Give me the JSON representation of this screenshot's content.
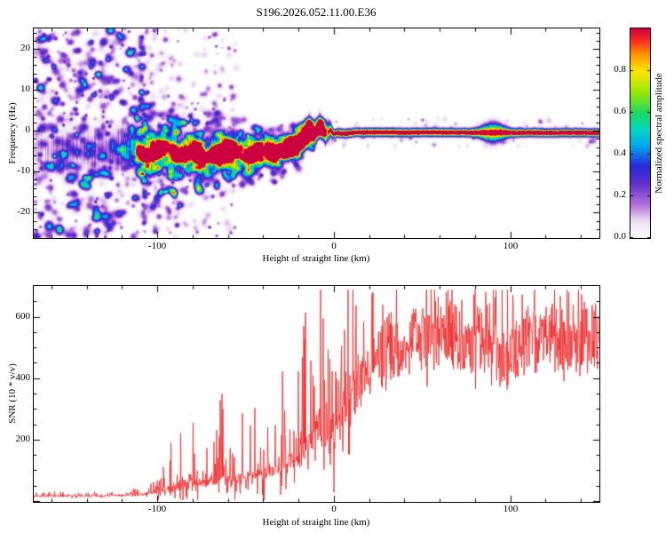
{
  "title": "S196.2026.052.11.00.E36",
  "axes": {
    "top": {
      "ylabel": "Frequency (Hz)",
      "xlabel": "Height of straight line (km)",
      "yticks": [
        "20",
        "10",
        "0",
        "-10",
        "-20"
      ],
      "xticks": [
        "-100",
        "0",
        "100"
      ]
    },
    "colorbar": {
      "label": "Normalized spectral amplitude",
      "ticks": [
        "0.8",
        "0.6",
        "0.4",
        "0.2",
        "0.0"
      ]
    },
    "bottom": {
      "ylabel": "SNR (10 * v/v)",
      "xlabel": "Height of straight line (km)",
      "yticks": [
        "600",
        "400",
        "200"
      ],
      "xticks": [
        "-100",
        "0",
        "100"
      ]
    }
  },
  "chart_data": [
    {
      "type": "heatmap",
      "title": "S196.2026.052.11.00.E36",
      "xlabel": "Height of straight line (km)",
      "ylabel": "Frequency (Hz)",
      "xrange": [
        -170,
        150
      ],
      "yrange": [
        -26,
        25
      ],
      "xticks": [
        -100,
        0,
        100
      ],
      "yticks": [
        -20,
        -10,
        0,
        10,
        20
      ],
      "colorbar_label": "Normalized spectral amplitude",
      "colorbar_range": [
        0,
        1
      ],
      "colorbar_ticks": [
        0.0,
        0.2,
        0.4,
        0.6,
        0.8
      ],
      "colormap": [
        [
          0.0,
          "#ffffff"
        ],
        [
          0.08,
          "#ecdcf4"
        ],
        [
          0.16,
          "#b06cd8"
        ],
        [
          0.26,
          "#6030cc"
        ],
        [
          0.34,
          "#2828d8"
        ],
        [
          0.44,
          "#00a8f0"
        ],
        [
          0.52,
          "#00d8c0"
        ],
        [
          0.6,
          "#20d860"
        ],
        [
          0.7,
          "#a0e800"
        ],
        [
          0.8,
          "#ffe400"
        ],
        [
          0.88,
          "#ff9000"
        ],
        [
          0.94,
          "#ff3020"
        ],
        [
          1.0,
          "#cc0040"
        ]
      ],
      "ridge": [
        [
          -170,
          -4.5
        ],
        [
          -130,
          -4.5
        ],
        [
          -115,
          -4.2
        ],
        [
          -105,
          -5.5
        ],
        [
          -96,
          -4.2
        ],
        [
          -88,
          -6.2
        ],
        [
          -80,
          -5.0
        ],
        [
          -73,
          -6.8
        ],
        [
          -66,
          -5.6
        ],
        [
          -58,
          -4.6
        ],
        [
          -51,
          -6.0
        ],
        [
          -45,
          -5.2
        ],
        [
          -38,
          -4.2
        ],
        [
          -32,
          -5.6
        ],
        [
          -26,
          -4.4
        ],
        [
          -21,
          -3.2
        ],
        [
          -17,
          -1.6
        ],
        [
          -14,
          0.6
        ],
        [
          -11,
          -1.8
        ],
        [
          -8,
          1.2
        ],
        [
          -5,
          -1.4
        ],
        [
          -2,
          0.4
        ],
        [
          0,
          -0.4
        ],
        [
          6,
          -0.6
        ],
        [
          12,
          -0.3
        ],
        [
          150,
          -0.4
        ]
      ],
      "ridge_amp": [
        [
          -170,
          0.1
        ],
        [
          -125,
          0.18
        ],
        [
          -112,
          0.3
        ],
        [
          -100,
          0.4
        ],
        [
          -88,
          0.46
        ],
        [
          -75,
          0.52
        ],
        [
          -60,
          0.5
        ],
        [
          -48,
          0.55
        ],
        [
          -38,
          0.6
        ],
        [
          -28,
          0.62
        ],
        [
          -20,
          0.7
        ],
        [
          -14,
          0.78
        ],
        [
          -9,
          0.68
        ],
        [
          -4,
          0.8
        ],
        [
          -1,
          0.9
        ],
        [
          1,
          0.96
        ],
        [
          40,
          0.96
        ],
        [
          86,
          0.92
        ],
        [
          91,
          0.88
        ],
        [
          96,
          0.95
        ],
        [
          150,
          0.95
        ]
      ],
      "ridge_width": [
        [
          -170,
          3.6
        ],
        [
          -110,
          3.0
        ],
        [
          -70,
          2.6
        ],
        [
          -40,
          2.2
        ],
        [
          -22,
          1.9
        ],
        [
          -12,
          1.7
        ],
        [
          -4,
          1.3
        ],
        [
          0,
          0.62
        ],
        [
          150,
          0.6
        ]
      ],
      "speckle": {
        "uniform": {
          "h_max": -108,
          "count": 520,
          "val": [
            0.08,
            0.4
          ],
          "r": [
            1.2,
            3.6
          ]
        },
        "taper": {
          "h0": -108,
          "h1": -55,
          "count": 260,
          "val": [
            0.07,
            0.28
          ],
          "r": [
            1.2,
            3.0
          ]
        },
        "band": {
          "h0": -112,
          "h1": -12,
          "count": 700,
          "val": [
            0.1,
            0.45
          ],
          "r": [
            1.2,
            3.4
          ],
          "sigma0": 13,
          "sigma1": 4
        },
        "ridge_blobs": {
          "h0": -112,
          "h1": -6,
          "count": 260,
          "val": [
            0.15,
            0.45
          ],
          "r": [
            1.5,
            4.0
          ]
        },
        "sparse_right": {
          "h0": -10,
          "h1": 150,
          "count": 90,
          "val": [
            0.05,
            0.18
          ],
          "r": [
            1.0,
            2.5
          ],
          "sigma": 3.5
        }
      }
    },
    {
      "type": "line",
      "xlabel": "Height of straight line (km)",
      "ylabel": "SNR (10 * v/v)",
      "xrange": [
        -170,
        150
      ],
      "yrange": [
        0,
        700
      ],
      "xticks": [
        -100,
        0,
        100
      ],
      "yticks": [
        0,
        200,
        400,
        600
      ],
      "color": "#ee2222",
      "envelope": [
        [
          -170,
          16,
          9
        ],
        [
          -150,
          16,
          9
        ],
        [
          -130,
          17,
          10
        ],
        [
          -118,
          18,
          12
        ],
        [
          -108,
          22,
          18
        ],
        [
          -100,
          30,
          35
        ],
        [
          -93,
          40,
          80
        ],
        [
          -86,
          55,
          150
        ],
        [
          -80,
          65,
          170
        ],
        [
          -74,
          60,
          130
        ],
        [
          -68,
          65,
          160
        ],
        [
          -62,
          75,
          195
        ],
        [
          -56,
          70,
          130
        ],
        [
          -50,
          78,
          130
        ],
        [
          -44,
          85,
          140
        ],
        [
          -38,
          95,
          150
        ],
        [
          -32,
          110,
          170
        ],
        [
          -26,
          125,
          185
        ],
        [
          -20,
          150,
          240
        ],
        [
          -15,
          180,
          320
        ],
        [
          -11,
          220,
          420
        ],
        [
          -8,
          240,
          450
        ],
        [
          -5,
          210,
          400
        ],
        [
          -2,
          230,
          380
        ],
        [
          1,
          260,
          350
        ],
        [
          4,
          290,
          300
        ],
        [
          8,
          320,
          270
        ],
        [
          12,
          350,
          240
        ],
        [
          16,
          390,
          200
        ],
        [
          20,
          430,
          160
        ],
        [
          25,
          465,
          120
        ],
        [
          30,
          490,
          105
        ],
        [
          38,
          515,
          95
        ],
        [
          48,
          525,
          110
        ],
        [
          58,
          535,
          125
        ],
        [
          68,
          530,
          100
        ],
        [
          78,
          525,
          95
        ],
        [
          85,
          535,
          140
        ],
        [
          90,
          505,
          220
        ],
        [
          94,
          455,
          280
        ],
        [
          98,
          460,
          260
        ],
        [
          102,
          510,
          150
        ],
        [
          108,
          525,
          95
        ],
        [
          120,
          530,
          85
        ],
        [
          135,
          532,
          85
        ],
        [
          150,
          530,
          85
        ]
      ]
    }
  ]
}
